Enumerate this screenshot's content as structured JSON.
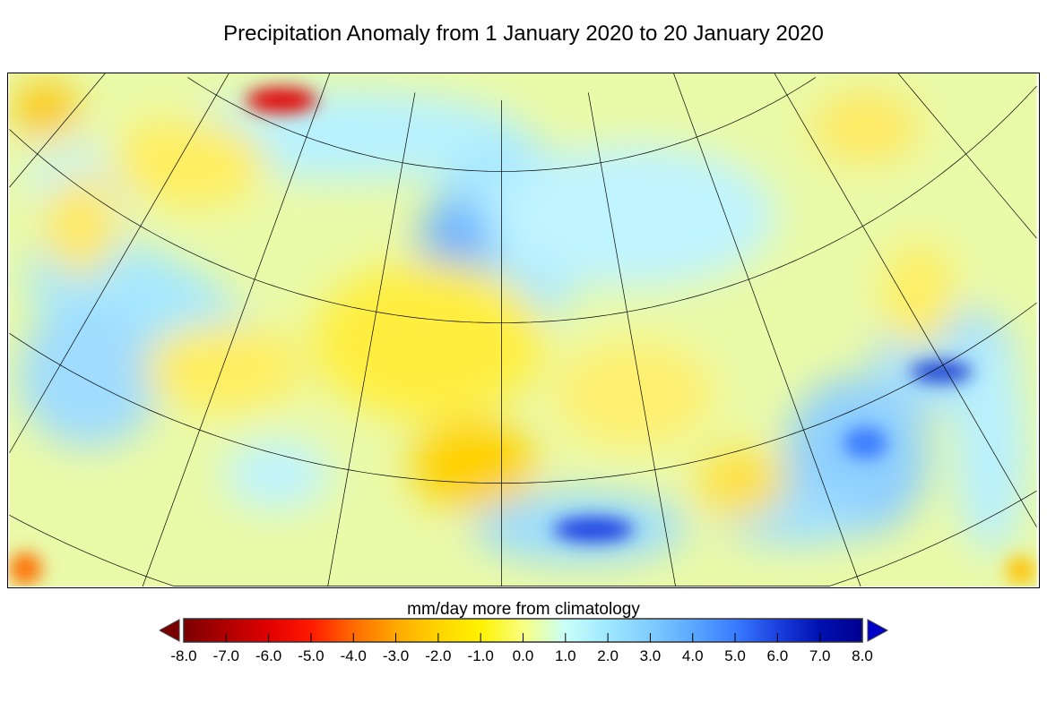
{
  "title": "Precipitation Anomaly from 1 January 2020 to 20 January 2020",
  "colorbar": {
    "label": "mm/day more from climatology",
    "ticks": [
      "-8.0",
      "-7.0",
      "-6.0",
      "-5.0",
      "-4.0",
      "-3.0",
      "-2.0",
      "-1.0",
      "0.0",
      "1.0",
      "2.0",
      "3.0",
      "4.0",
      "5.0",
      "6.0",
      "7.0",
      "8.0"
    ],
    "range": [
      -8,
      8
    ],
    "colors": [
      "#7a0000",
      "#b00000",
      "#e00000",
      "#ff1a00",
      "#ff6a00",
      "#ffa800",
      "#ffd400",
      "#fff200",
      "#f8ff80",
      "#c8fff8",
      "#9ee8ff",
      "#80ccff",
      "#5aa8ff",
      "#3a7cff",
      "#1a40e0",
      "#0010b0",
      "#000090"
    ],
    "under_color": "#7a0000",
    "over_color": "#0000c8"
  },
  "map": {
    "background": "#eafaa8"
  }
}
